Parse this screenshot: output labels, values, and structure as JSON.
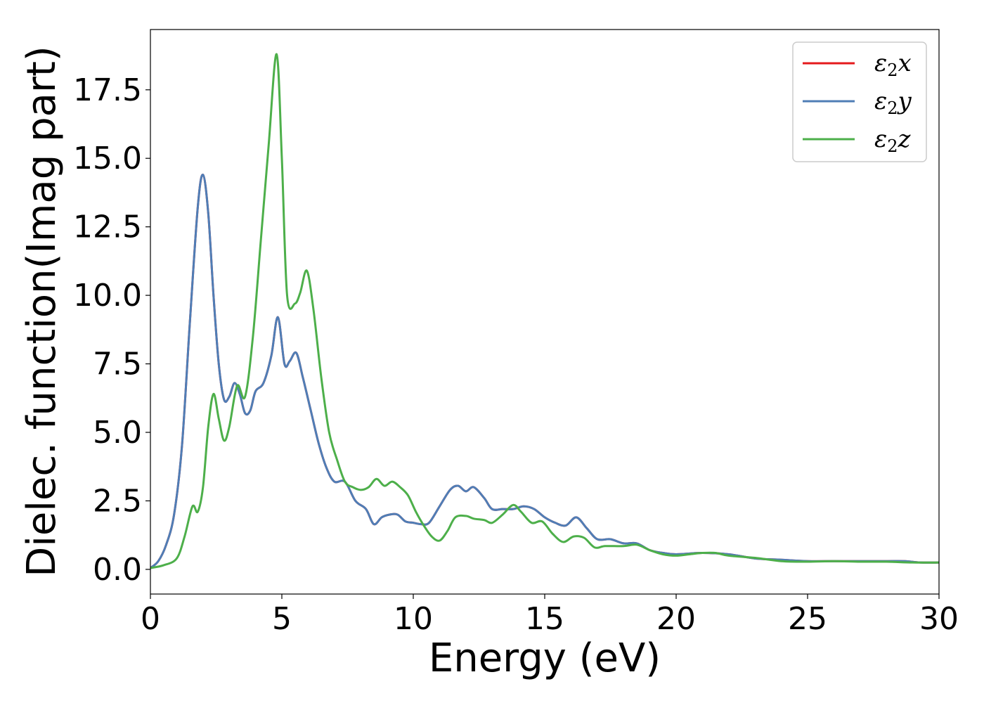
{
  "chart_data": {
    "type": "line",
    "title": "",
    "xlabel": "Energy (eV)",
    "ylabel": "Dielec. function(Imag part)",
    "xlim": [
      0,
      30
    ],
    "ylim": [
      -0.9,
      19.7
    ],
    "xticks": [
      0,
      5,
      10,
      15,
      20,
      25,
      30
    ],
    "xtick_labels": [
      "0",
      "5",
      "10",
      "15",
      "20",
      "25",
      "30"
    ],
    "yticks": [
      0.0,
      2.5,
      5.0,
      7.5,
      10.0,
      12.5,
      15.0,
      17.5
    ],
    "ytick_labels": [
      "0.0",
      "2.5",
      "5.0",
      "7.5",
      "10.0",
      "12.5",
      "15.0",
      "17.5"
    ],
    "grid": false,
    "legend": "top-right",
    "series": [
      {
        "name": "ε2x",
        "label_main": "ε",
        "label_sub": "2",
        "label_tail": "x",
        "color": "#e41a1c",
        "x": [
          0,
          0.3,
          0.6,
          0.9,
          1.2,
          1.5,
          1.8,
          2.0,
          2.2,
          2.4,
          2.6,
          2.8,
          3.0,
          3.2,
          3.4,
          3.6,
          3.8,
          4.0,
          4.3,
          4.6,
          4.85,
          5.1,
          5.3,
          5.55,
          5.8,
          6.1,
          6.4,
          6.7,
          7.0,
          7.4,
          7.8,
          8.2,
          8.5,
          8.8,
          9.1,
          9.4,
          9.7,
          10.0,
          10.3,
          10.6,
          11.0,
          11.4,
          11.7,
          12.0,
          12.3,
          12.7,
          13.0,
          13.4,
          13.8,
          14.2,
          14.6,
          15.0,
          15.4,
          15.8,
          16.2,
          16.6,
          17.0,
          17.5,
          18.0,
          18.5,
          19.0,
          19.5,
          20.0,
          21.0,
          22.0,
          23.0,
          24.0,
          25.0,
          26.0,
          27.0,
          28.0,
          28.7,
          29.3,
          30.0
        ],
        "values": [
          0.05,
          0.3,
          0.9,
          2.0,
          4.5,
          9.0,
          13.2,
          14.4,
          13.0,
          10.0,
          7.5,
          6.2,
          6.3,
          6.8,
          6.4,
          5.7,
          5.8,
          6.5,
          6.8,
          7.8,
          9.2,
          7.5,
          7.6,
          7.9,
          7.0,
          5.8,
          4.6,
          3.7,
          3.2,
          3.2,
          2.5,
          2.2,
          1.65,
          1.9,
          2.0,
          2.0,
          1.75,
          1.7,
          1.65,
          1.7,
          2.3,
          2.9,
          3.05,
          2.85,
          3.0,
          2.6,
          2.2,
          2.2,
          2.2,
          2.3,
          2.2,
          1.9,
          1.7,
          1.6,
          1.9,
          1.5,
          1.1,
          1.1,
          0.95,
          0.95,
          0.7,
          0.6,
          0.55,
          0.6,
          0.55,
          0.4,
          0.35,
          0.3,
          0.3,
          0.3,
          0.3,
          0.3,
          0.25,
          0.25
        ]
      },
      {
        "name": "ε2y",
        "label_main": "ε",
        "label_sub": "2",
        "label_tail": "y",
        "color": "#4f7eb6",
        "x": [
          0,
          0.3,
          0.6,
          0.9,
          1.2,
          1.5,
          1.8,
          2.0,
          2.2,
          2.4,
          2.6,
          2.8,
          3.0,
          3.2,
          3.4,
          3.6,
          3.8,
          4.0,
          4.3,
          4.6,
          4.85,
          5.1,
          5.3,
          5.55,
          5.8,
          6.1,
          6.4,
          6.7,
          7.0,
          7.4,
          7.8,
          8.2,
          8.5,
          8.8,
          9.1,
          9.4,
          9.7,
          10.0,
          10.3,
          10.6,
          11.0,
          11.4,
          11.7,
          12.0,
          12.3,
          12.7,
          13.0,
          13.4,
          13.8,
          14.2,
          14.6,
          15.0,
          15.4,
          15.8,
          16.2,
          16.6,
          17.0,
          17.5,
          18.0,
          18.5,
          19.0,
          19.5,
          20.0,
          21.0,
          22.0,
          23.0,
          24.0,
          25.0,
          26.0,
          27.0,
          28.0,
          28.7,
          29.3,
          30.0
        ],
        "values": [
          0.05,
          0.3,
          0.9,
          2.0,
          4.5,
          9.0,
          13.2,
          14.4,
          13.0,
          10.0,
          7.5,
          6.2,
          6.3,
          6.8,
          6.4,
          5.7,
          5.8,
          6.5,
          6.8,
          7.8,
          9.2,
          7.5,
          7.6,
          7.9,
          7.0,
          5.8,
          4.6,
          3.7,
          3.2,
          3.2,
          2.5,
          2.2,
          1.65,
          1.9,
          2.0,
          2.0,
          1.75,
          1.7,
          1.65,
          1.7,
          2.3,
          2.9,
          3.05,
          2.85,
          3.0,
          2.6,
          2.2,
          2.2,
          2.2,
          2.3,
          2.2,
          1.9,
          1.7,
          1.6,
          1.9,
          1.5,
          1.1,
          1.1,
          0.95,
          0.95,
          0.7,
          0.6,
          0.55,
          0.6,
          0.55,
          0.4,
          0.35,
          0.3,
          0.3,
          0.3,
          0.3,
          0.3,
          0.25,
          0.25
        ]
      },
      {
        "name": "ε2z",
        "label_main": "ε",
        "label_sub": "2",
        "label_tail": "z",
        "color": "#4daf4a",
        "x": [
          0,
          0.5,
          1.0,
          1.3,
          1.6,
          1.8,
          2.0,
          2.2,
          2.4,
          2.6,
          2.8,
          3.0,
          3.3,
          3.6,
          3.9,
          4.2,
          4.5,
          4.8,
          5.0,
          5.2,
          5.5,
          5.7,
          5.95,
          6.2,
          6.5,
          6.8,
          7.1,
          7.4,
          7.7,
          8.0,
          8.3,
          8.6,
          8.9,
          9.2,
          9.5,
          9.8,
          10.1,
          10.4,
          10.7,
          11.0,
          11.3,
          11.6,
          12.0,
          12.3,
          12.7,
          13.0,
          13.4,
          13.8,
          14.1,
          14.5,
          14.9,
          15.3,
          15.7,
          16.1,
          16.5,
          16.9,
          17.3,
          18.0,
          18.5,
          19.0,
          19.5,
          20.0,
          20.5,
          21.0,
          21.5,
          22.0,
          23.0,
          24.0,
          25.0,
          26.0,
          27.0,
          28.0,
          29.0,
          30.0
        ],
        "values": [
          0.05,
          0.15,
          0.4,
          1.2,
          2.3,
          2.1,
          3.0,
          5.2,
          6.4,
          5.5,
          4.7,
          5.2,
          6.7,
          6.3,
          8.5,
          12.0,
          15.5,
          18.8,
          15.0,
          10.0,
          9.7,
          10.1,
          10.9,
          9.5,
          7.0,
          5.0,
          4.0,
          3.2,
          3.0,
          2.9,
          3.0,
          3.3,
          3.05,
          3.2,
          3.0,
          2.7,
          2.1,
          1.6,
          1.2,
          1.05,
          1.4,
          1.9,
          1.95,
          1.85,
          1.8,
          1.7,
          2.0,
          2.35,
          2.1,
          1.7,
          1.75,
          1.3,
          1.0,
          1.2,
          1.15,
          0.8,
          0.85,
          0.85,
          0.9,
          0.7,
          0.55,
          0.5,
          0.55,
          0.6,
          0.6,
          0.5,
          0.42,
          0.3,
          0.28,
          0.3,
          0.28,
          0.28,
          0.25,
          0.25
        ]
      }
    ]
  }
}
